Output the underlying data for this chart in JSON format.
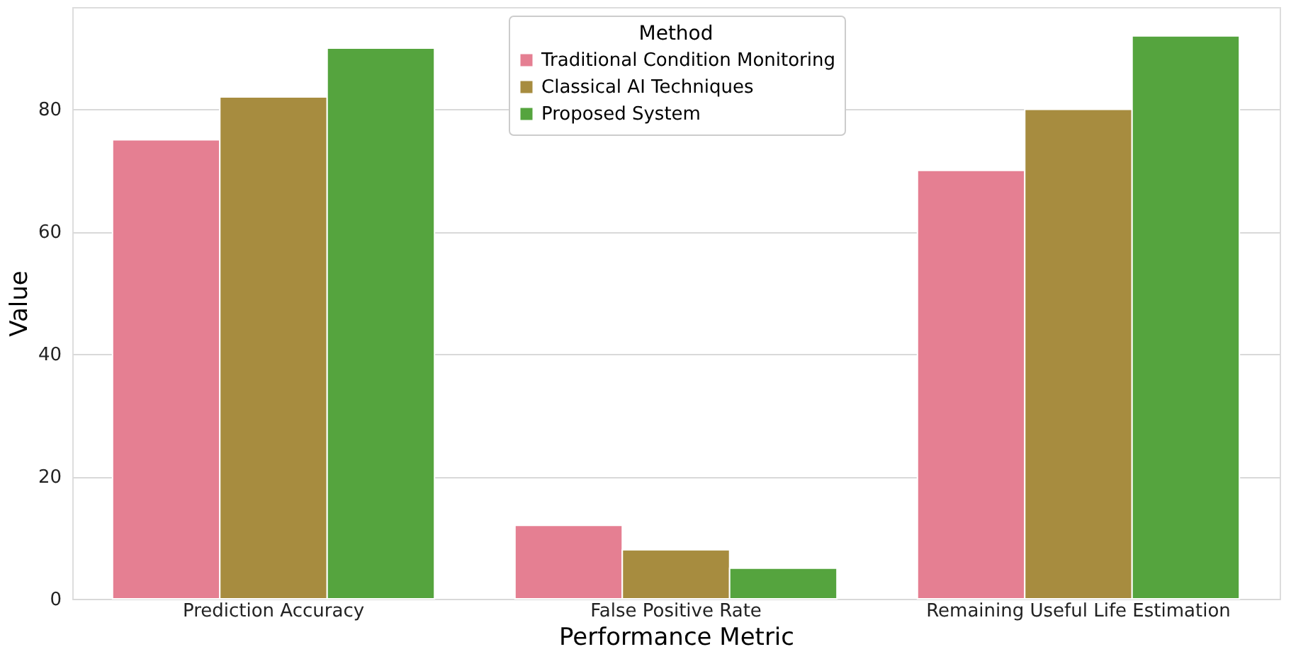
{
  "chart_data": {
    "type": "bar",
    "xlabel": "Performance Metric",
    "ylabel": "Value",
    "legend_title": "Method",
    "categories": [
      "Prediction Accuracy",
      "False Positive Rate",
      "Remaining Useful Life Estimation"
    ],
    "series": [
      {
        "name": "Traditional Condition Monitoring",
        "color": "#e57f92",
        "values": [
          75,
          12,
          70
        ]
      },
      {
        "name": "Classical AI Techniques",
        "color": "#a78c3f",
        "values": [
          82,
          8,
          80
        ]
      },
      {
        "name": "Proposed System",
        "color": "#55a43e",
        "values": [
          90,
          5,
          92
        ]
      }
    ],
    "ylim": [
      0,
      96.7
    ],
    "yticks": [
      0,
      20,
      40,
      60,
      80
    ],
    "grid": "y",
    "legend": "top"
  }
}
